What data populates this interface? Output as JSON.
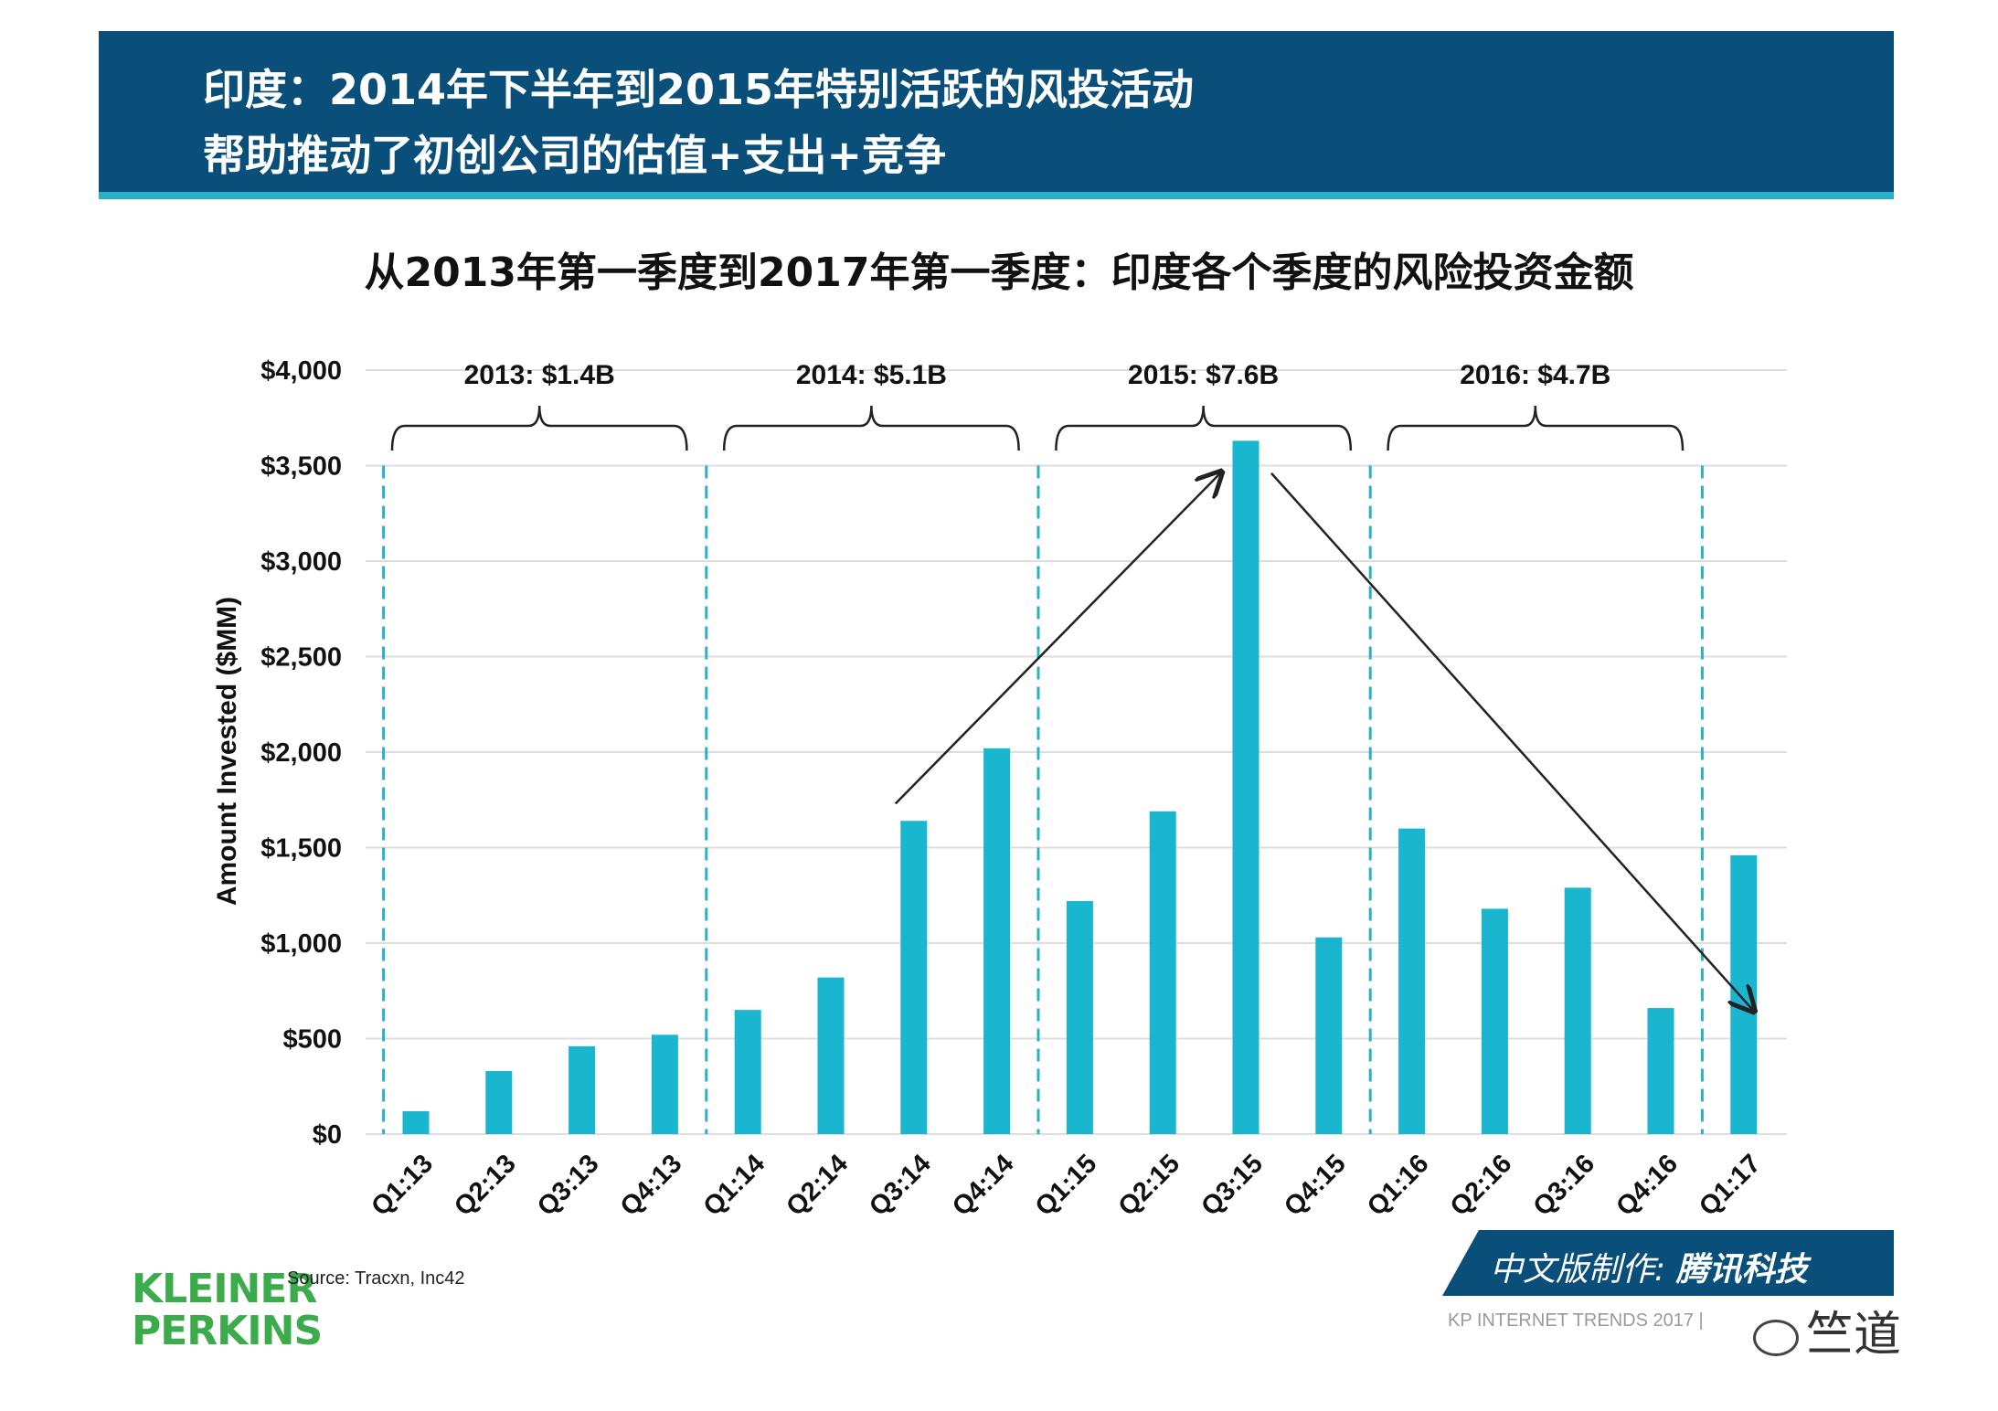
{
  "header": {
    "line1": "印度：2014年下半年到2015年特别活跃的风投活动",
    "line2": "帮助推动了初创公司的估值+支出+竞争"
  },
  "chart_data": {
    "type": "bar",
    "title": "从2013年第一季度到2017年第一季度：印度各个季度的风险投资金额",
    "ylabel": "Amount Invested ($MM)",
    "ylim": [
      0,
      4000
    ],
    "yticks": [
      0,
      500,
      1000,
      1500,
      2000,
      2500,
      3000,
      3500,
      4000
    ],
    "ytick_labels": [
      "$0",
      "$500",
      "$1,000",
      "$1,500",
      "$2,000",
      "$2,500",
      "$3,000",
      "$3,500",
      "$4,000"
    ],
    "categories": [
      "Q1:13",
      "Q2:13",
      "Q3:13",
      "Q4:13",
      "Q1:14",
      "Q2:14",
      "Q3:14",
      "Q4:14",
      "Q1:15",
      "Q2:15",
      "Q3:15",
      "Q4:15",
      "Q1:16",
      "Q2:16",
      "Q3:16",
      "Q4:16",
      "Q1:17"
    ],
    "values": [
      120,
      330,
      460,
      520,
      650,
      820,
      1640,
      2020,
      1220,
      1690,
      3630,
      1030,
      1600,
      1180,
      1290,
      660,
      1460
    ],
    "bar_color": "#1ab5cf",
    "grid": true,
    "year_groups": [
      {
        "label": "2013: $1.4B",
        "start": 0,
        "end": 3
      },
      {
        "label": "2014: $5.1B",
        "start": 4,
        "end": 7
      },
      {
        "label": "2015: $7.6B",
        "start": 8,
        "end": 11
      },
      {
        "label": "2016: $4.7B",
        "start": 12,
        "end": 15
      }
    ],
    "trend_arrows": [
      {
        "from": "Q3:14",
        "to": "Q3:15"
      },
      {
        "from": "Q3:15",
        "to": "Q1:17"
      }
    ]
  },
  "source": "Source: Tracxn, Inc42",
  "logo": {
    "line1": "KLEINER",
    "line2": "PERKINS"
  },
  "badge": {
    "prefix": "中文版制作:",
    "brand": "腾讯科技"
  },
  "footer": "KP INTERNET TRENDS 2017 |",
  "wechat": "竺道",
  "colors": {
    "banner": "#0a4f7a",
    "accent": "#2ab0c8",
    "bar": "#1ab5cf",
    "logo": "#3cab4b"
  }
}
